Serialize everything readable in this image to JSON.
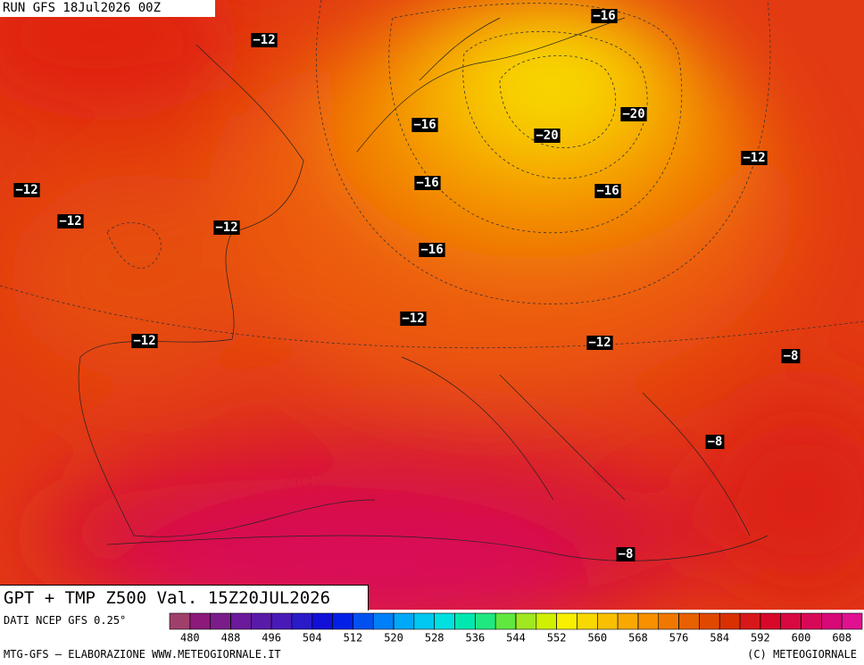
{
  "header": {
    "title": "RUN GFS 18Jul2026 00Z"
  },
  "map": {
    "labels": [
      "−16",
      "−12",
      "−16",
      "−20",
      "−20",
      "−12",
      "−12",
      "−16",
      "−16",
      "−12",
      "−12",
      "−16",
      "−12",
      "−12",
      "−12",
      "−8",
      "−8",
      "−8"
    ]
  },
  "footer": {
    "product": "GPT + TMP Z500 Val. 15Z20JUL2026",
    "source": "DATI NCEP GFS 0.25°",
    "credit": "MTG-GFS — ELABORAZIONE WWW.METEOGIORNALE.IT",
    "copyright": "(C) METEOGIORNALE"
  },
  "colorbar": {
    "min": 476,
    "max": 612,
    "ticks": [
      480,
      488,
      496,
      504,
      512,
      520,
      528,
      536,
      544,
      552,
      560,
      568,
      576,
      584,
      592,
      600,
      608
    ],
    "colors": [
      "#a0406a",
      "#8b1a7a",
      "#7a1d8a",
      "#6a1a9a",
      "#5a1aa8",
      "#4a1ab8",
      "#2a1ac8",
      "#1010d8",
      "#0020e8",
      "#0050f0",
      "#0080f8",
      "#00a8f8",
      "#00c8f0",
      "#00e0e0",
      "#00e8b0",
      "#20e880",
      "#60e840",
      "#a0e820",
      "#d0f000",
      "#f8f000",
      "#f8d800",
      "#f8c000",
      "#f8a800",
      "#f89000",
      "#f07800",
      "#e86000",
      "#e04800",
      "#d83000",
      "#d81818",
      "#d80828",
      "#d80840",
      "#d80858",
      "#d80878",
      "#e01090"
    ]
  }
}
